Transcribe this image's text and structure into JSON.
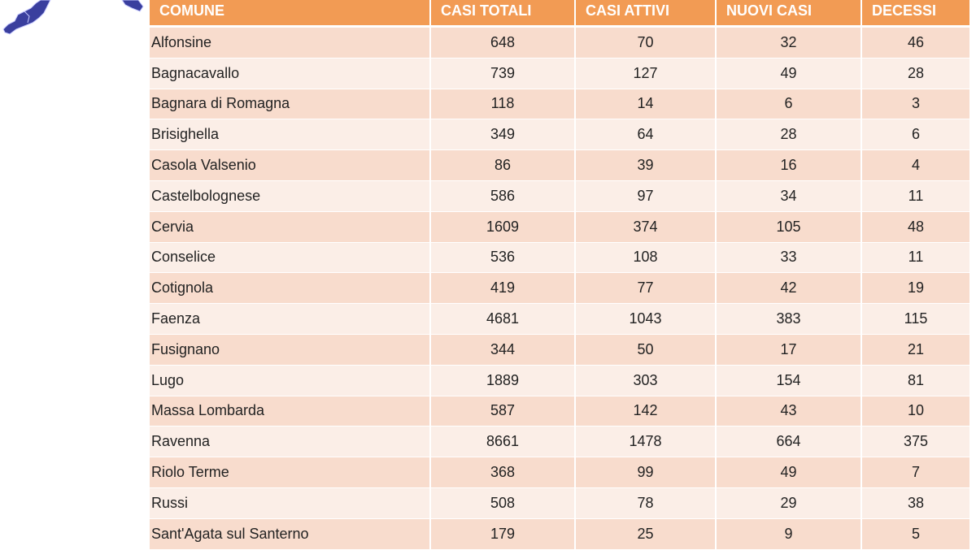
{
  "colors": {
    "header_bg": "#f29b54",
    "row_odd": "#f8dccd",
    "row_even": "#fbeee7",
    "map_fill": "#3a3f9e"
  },
  "table": {
    "headers": [
      "COMUNE",
      "CASI TOTALI",
      "CASI ATTIVI",
      "NUOVI CASI",
      "DECESSI"
    ],
    "rows": [
      [
        "Alfonsine",
        "648",
        "70",
        "32",
        "46"
      ],
      [
        "Bagnacavallo",
        "739",
        "127",
        "49",
        "28"
      ],
      [
        "Bagnara di Romagna",
        "118",
        "14",
        "6",
        "3"
      ],
      [
        "Brisighella",
        "349",
        "64",
        "28",
        "6"
      ],
      [
        "Casola Valsenio",
        "86",
        "39",
        "16",
        "4"
      ],
      [
        "Castelbolognese",
        "586",
        "97",
        "34",
        "11"
      ],
      [
        "Cervia",
        "1609",
        "374",
        "105",
        "48"
      ],
      [
        "Conselice",
        "536",
        "108",
        "33",
        "11"
      ],
      [
        "Cotignola",
        "419",
        "77",
        "42",
        "19"
      ],
      [
        "Faenza",
        "4681",
        "1043",
        "383",
        "115"
      ],
      [
        "Fusignano",
        "344",
        "50",
        "17",
        "21"
      ],
      [
        "Lugo",
        "1889",
        "303",
        "154",
        "81"
      ],
      [
        "Massa Lombarda",
        "587",
        "142",
        "43",
        "10"
      ],
      [
        "Ravenna",
        "8661",
        "1478",
        "664",
        "375"
      ],
      [
        "Riolo Terme",
        "368",
        "99",
        "49",
        "7"
      ],
      [
        "Russi",
        "508",
        "78",
        "29",
        "38"
      ],
      [
        "Sant'Agata sul Santerno",
        "179",
        "25",
        "9",
        "5"
      ]
    ]
  }
}
